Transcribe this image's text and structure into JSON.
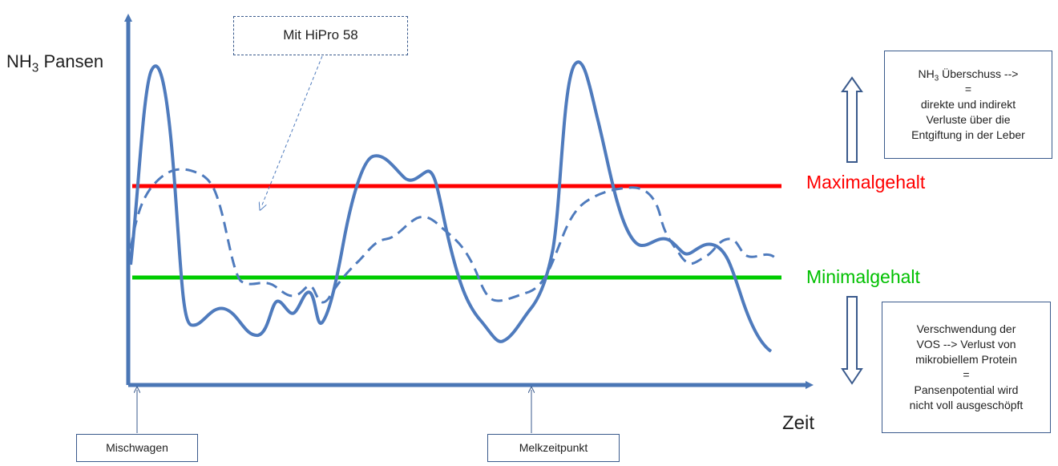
{
  "y_axis_label_prefix": "NH",
  "y_axis_label_sub": "3",
  "y_axis_label_suffix": " Pansen",
  "x_axis_label": "Zeit",
  "max_label": "Maximalgehalt",
  "min_label": "Minimalgehalt",
  "hipro_label": "Mit HiPro 58",
  "event_labels": {
    "mixer": "Mischwagen",
    "milking": "Melkzeitpunkt"
  },
  "excess_box": {
    "line1_prefix": "NH",
    "line1_sub": "3",
    "line1_suffix": " Überschuss -->",
    "line2": "=",
    "line3": "direkte und indirekt",
    "line4": "Verluste über die",
    "line5": "Entgiftung in der Leber"
  },
  "deficit_box": {
    "line1": "Verschwendung der",
    "line2": "VOS --> Verlust von",
    "line3": "mikrobiellem Protein",
    "line4": "=",
    "line5": "Pansenpotential wird",
    "line6": "nicht voll ausgeschöpft"
  },
  "colors": {
    "axis": "#4a76b5",
    "curve": "#4f7bbd",
    "max_line": "#ff0000",
    "min_line": "#00cc00",
    "box_border": "#3a5a8c"
  }
}
